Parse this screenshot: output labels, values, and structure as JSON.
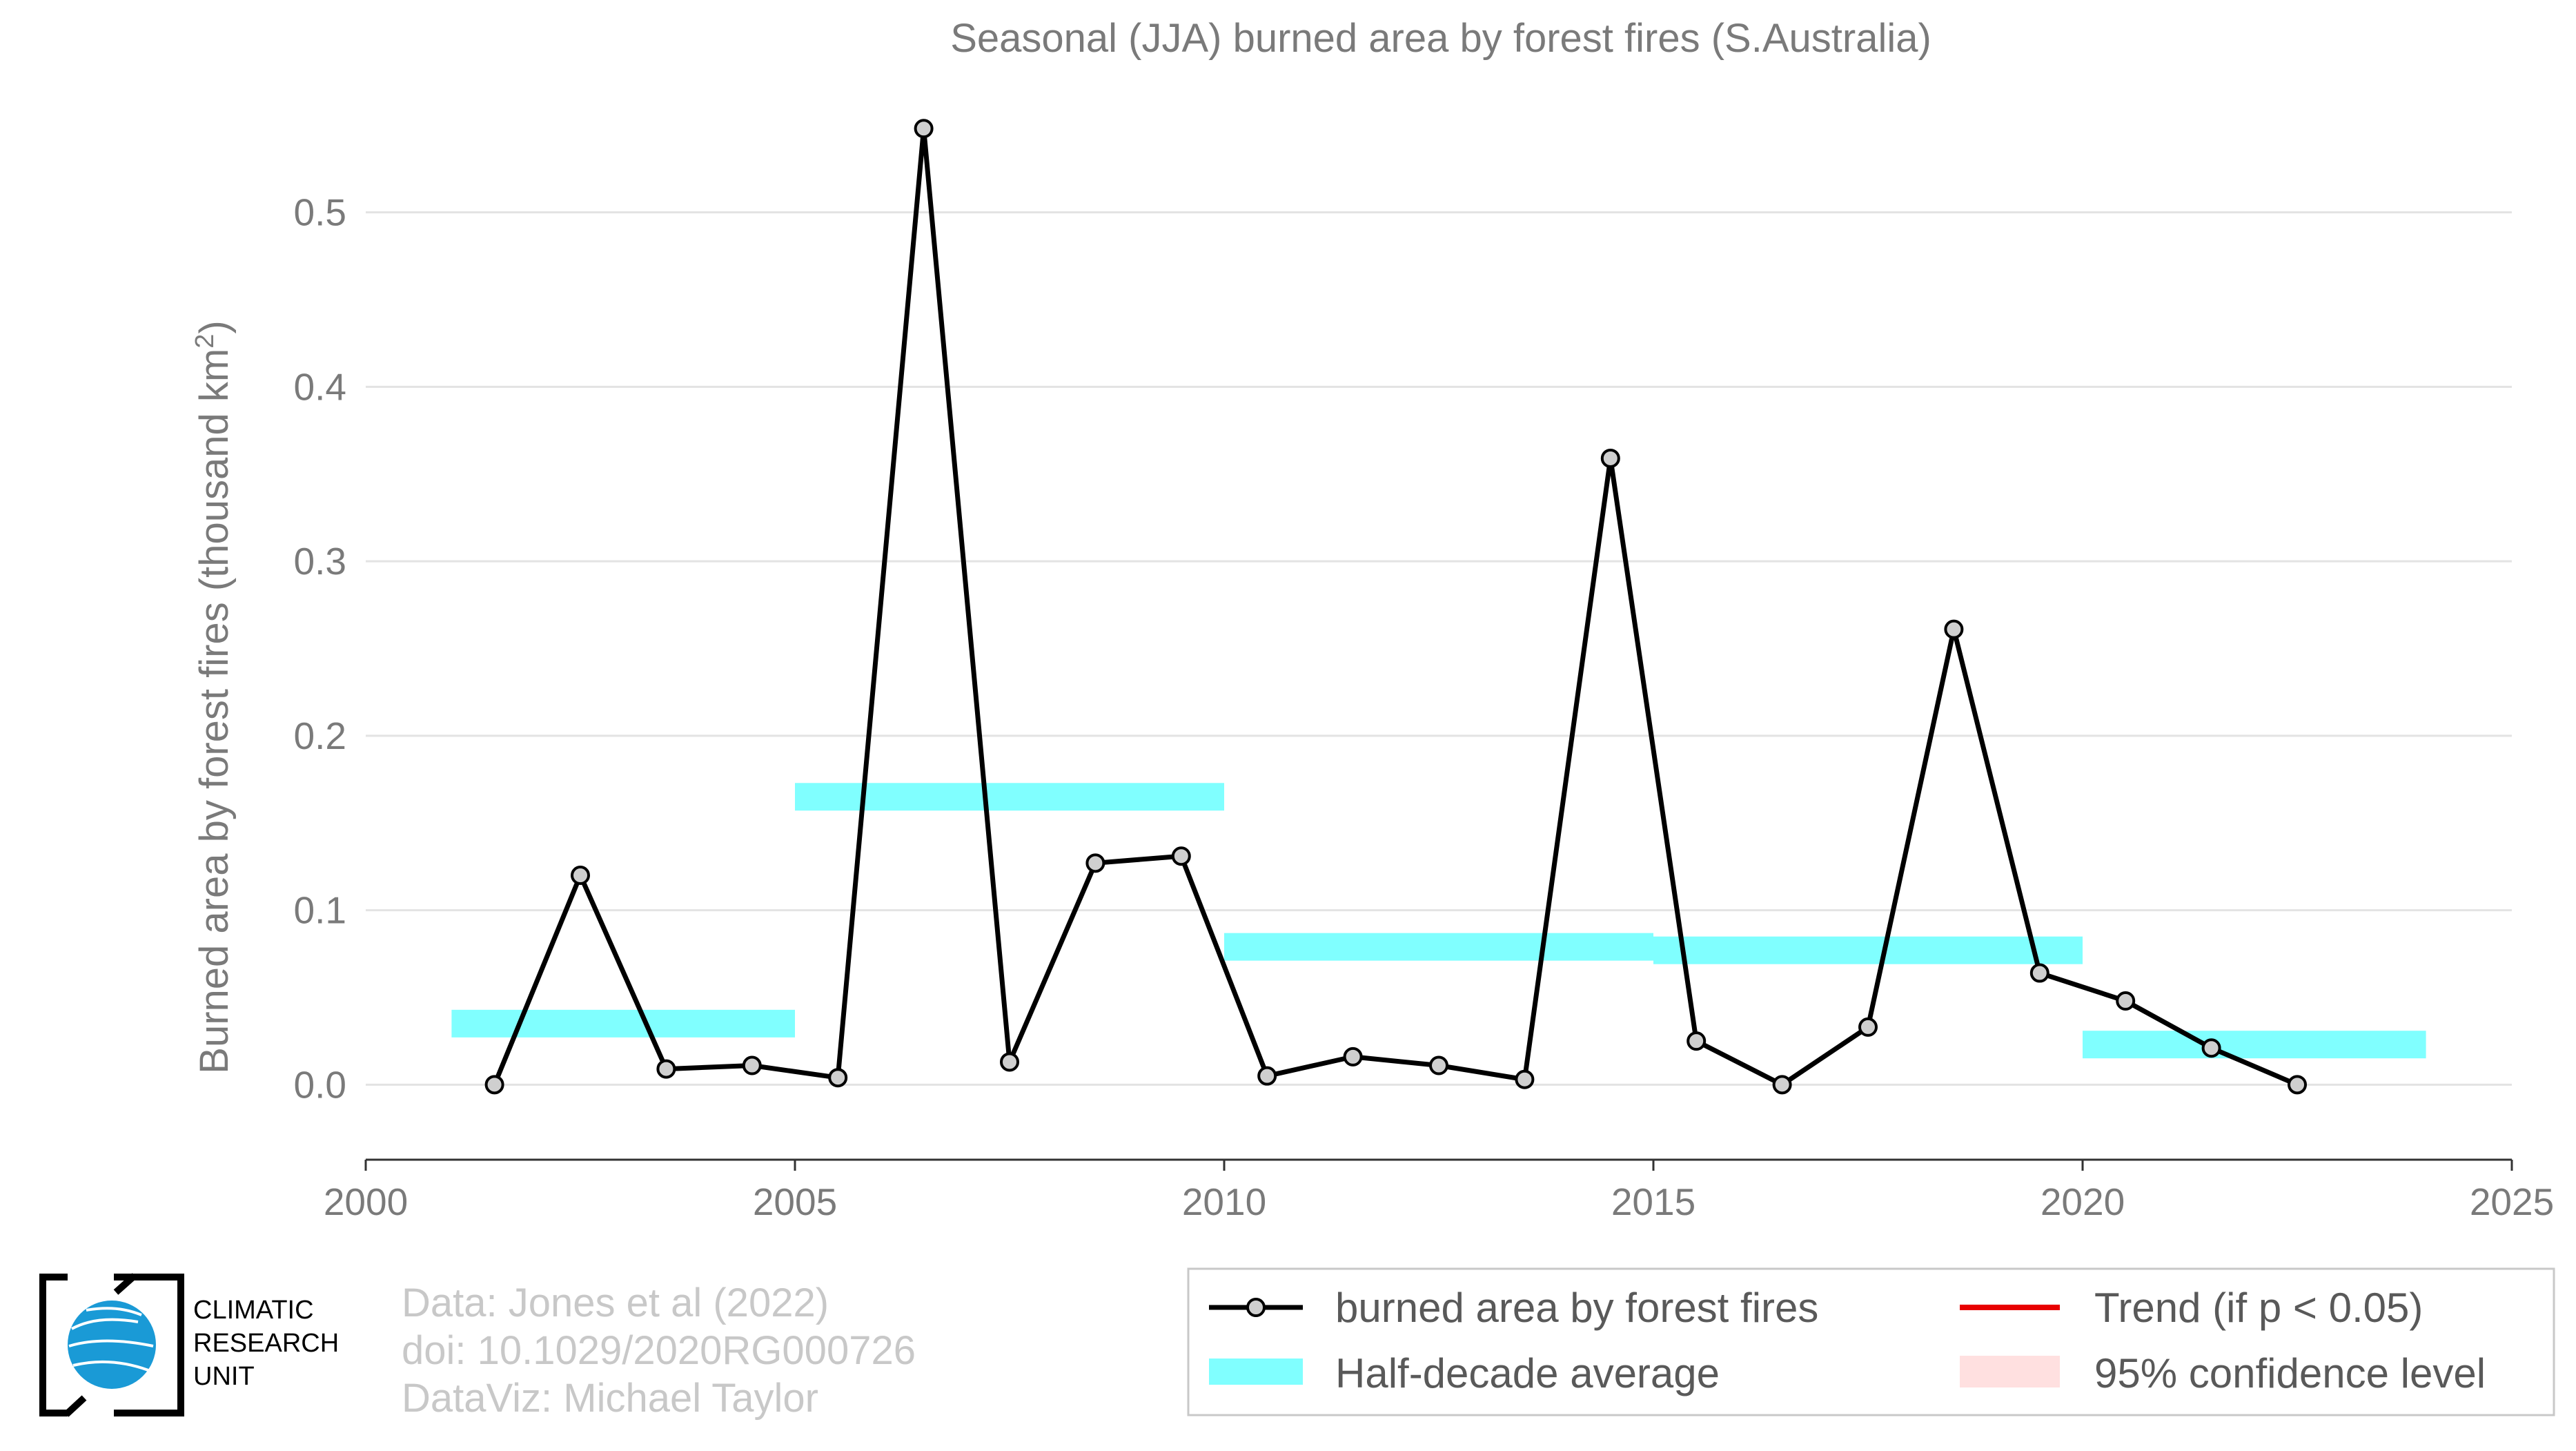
{
  "chart_data": {
    "type": "line",
    "title": "Seasonal (JJA) burned area by forest fires (S.Australia)",
    "ylabel": "Burned area by forest fires (thousand km",
    "ylabel_superscript": "2",
    "ylabel_close": ")",
    "xlabel": "",
    "xlim": [
      2000,
      2025
    ],
    "ylim": [
      -0.043,
      0.575
    ],
    "xticks": [
      2000,
      2005,
      2010,
      2015,
      2020,
      2025
    ],
    "yticks": [
      0.0,
      0.1,
      0.2,
      0.3,
      0.4,
      0.5
    ],
    "ytick_labels": [
      "0.0",
      "0.1",
      "0.2",
      "0.3",
      "0.4",
      "0.5"
    ],
    "grid": "horizontal",
    "series": [
      {
        "name": "burned area by forest fires",
        "color": "#000000",
        "marker_fill": "#cfcfcf",
        "x": [
          2001.5,
          2002.5,
          2003.5,
          2004.5,
          2005.5,
          2006.5,
          2007.5,
          2008.5,
          2009.5,
          2010.5,
          2011.5,
          2012.5,
          2013.5,
          2014.5,
          2015.5,
          2016.5,
          2017.5,
          2018.5,
          2019.5,
          2020.5,
          2021.5,
          2022.5
        ],
        "y": [
          0.0,
          0.12,
          0.009,
          0.011,
          0.004,
          0.548,
          0.013,
          0.127,
          0.131,
          0.005,
          0.016,
          0.011,
          0.003,
          0.359,
          0.025,
          0.0,
          0.033,
          0.261,
          0.064,
          0.048,
          0.021,
          0.0
        ]
      }
    ],
    "half_decade_average": {
      "name": "Half-decade average",
      "color": "#80ffff",
      "segments": [
        {
          "x0": 2001.0,
          "x1": 2005.0,
          "y": 0.035
        },
        {
          "x0": 2005.0,
          "x1": 2010.0,
          "y": 0.165
        },
        {
          "x0": 2010.0,
          "x1": 2015.0,
          "y": 0.079
        },
        {
          "x0": 2015.0,
          "x1": 2020.0,
          "y": 0.077
        },
        {
          "x0": 2020.0,
          "x1": 2024.0,
          "y": 0.023
        }
      ]
    },
    "legend": {
      "placement": "bottom-right",
      "entries": [
        {
          "label": "burned area by forest fires",
          "kind": "line-marker",
          "color": "#000000"
        },
        {
          "label": "Trend (if p < 0.05)",
          "kind": "line",
          "color": "#e80000"
        },
        {
          "label": "Half-decade average",
          "kind": "band",
          "color": "#80ffff"
        },
        {
          "label": "95% confidence level",
          "kind": "band",
          "color": "#ffe0e0"
        }
      ]
    }
  },
  "credits": {
    "line1": "Data: Jones et al (2022)",
    "line2": "doi: 10.1029/2020RG000726",
    "line3": "DataViz: Michael Taylor"
  },
  "logo": {
    "line1": "CLIMATIC",
    "line2": "RESEARCH",
    "line3": "UNIT",
    "icon": "globe-icon",
    "globe_color": "#1a9ad6"
  }
}
